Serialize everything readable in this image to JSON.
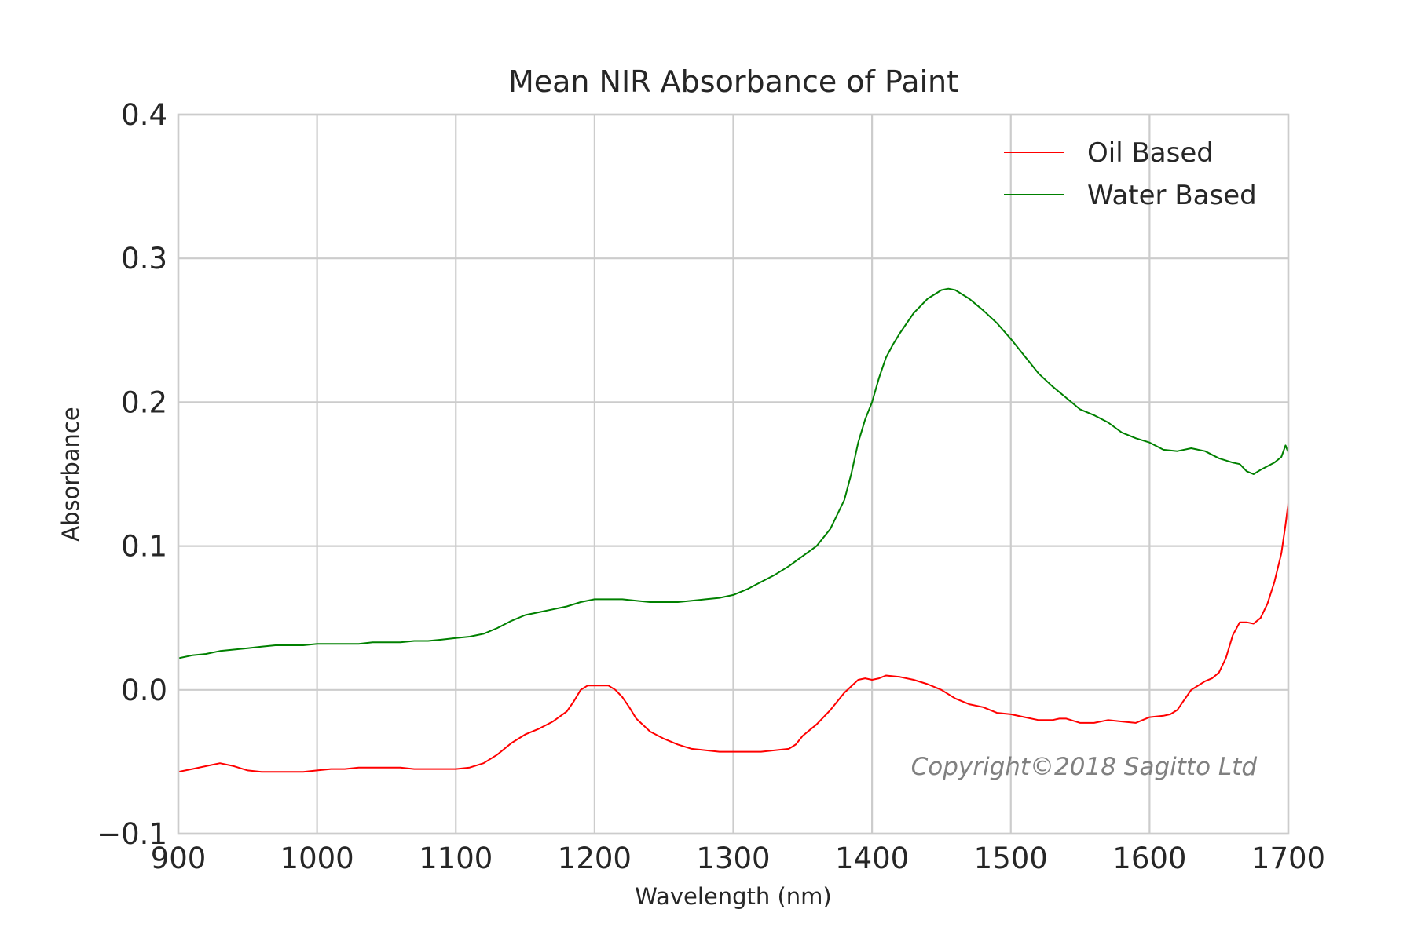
{
  "chart_data": {
    "type": "line",
    "title": "Mean NIR Absorbance of Paint",
    "xlabel": "Wavelength (nm)",
    "ylabel": "Absorbance",
    "xlim": [
      900,
      1700
    ],
    "ylim": [
      -0.1,
      0.4
    ],
    "xticks": [
      900,
      1000,
      1100,
      1200,
      1300,
      1400,
      1500,
      1600,
      1700
    ],
    "xtick_labels": [
      "900",
      "1000",
      "1100",
      "1200",
      "1300",
      "1400",
      "1500",
      "1600",
      "1700"
    ],
    "yticks": [
      -0.1,
      0.0,
      0.1,
      0.2,
      0.3,
      0.4
    ],
    "ytick_labels": [
      "−0.1",
      "0.0",
      "0.1",
      "0.2",
      "0.3",
      "0.4"
    ],
    "grid": true,
    "legend_position": "top-right",
    "watermark": "Copyright©2018 Sagitto Ltd",
    "series": [
      {
        "name": "Oil Based",
        "color": "#ff0000",
        "x": [
          900,
          910,
          920,
          930,
          940,
          950,
          960,
          970,
          980,
          990,
          1000,
          1010,
          1020,
          1030,
          1040,
          1050,
          1060,
          1070,
          1080,
          1090,
          1100,
          1110,
          1120,
          1130,
          1140,
          1150,
          1160,
          1170,
          1180,
          1185,
          1190,
          1195,
          1200,
          1205,
          1210,
          1215,
          1220,
          1225,
          1230,
          1240,
          1250,
          1260,
          1270,
          1280,
          1290,
          1300,
          1310,
          1320,
          1330,
          1340,
          1345,
          1350,
          1360,
          1370,
          1380,
          1390,
          1395,
          1400,
          1405,
          1410,
          1420,
          1430,
          1440,
          1450,
          1460,
          1470,
          1480,
          1490,
          1500,
          1510,
          1520,
          1530,
          1535,
          1540,
          1550,
          1560,
          1570,
          1580,
          1590,
          1600,
          1610,
          1615,
          1620,
          1625,
          1630,
          1640,
          1645,
          1650,
          1655,
          1660,
          1665,
          1670,
          1675,
          1680,
          1685,
          1690,
          1695,
          1698,
          1700
        ],
        "y": [
          -0.057,
          -0.055,
          -0.053,
          -0.051,
          -0.053,
          -0.056,
          -0.057,
          -0.057,
          -0.057,
          -0.057,
          -0.056,
          -0.055,
          -0.055,
          -0.054,
          -0.054,
          -0.054,
          -0.054,
          -0.055,
          -0.055,
          -0.055,
          -0.055,
          -0.054,
          -0.051,
          -0.045,
          -0.037,
          -0.031,
          -0.027,
          -0.022,
          -0.015,
          -0.008,
          0.0,
          0.003,
          0.003,
          0.003,
          0.003,
          0.0,
          -0.005,
          -0.012,
          -0.02,
          -0.029,
          -0.034,
          -0.038,
          -0.041,
          -0.042,
          -0.043,
          -0.043,
          -0.043,
          -0.043,
          -0.042,
          -0.041,
          -0.038,
          -0.032,
          -0.024,
          -0.014,
          -0.002,
          0.007,
          0.008,
          0.007,
          0.008,
          0.01,
          0.009,
          0.007,
          0.004,
          0.0,
          -0.006,
          -0.01,
          -0.012,
          -0.016,
          -0.017,
          -0.019,
          -0.021,
          -0.021,
          -0.02,
          -0.02,
          -0.023,
          -0.023,
          -0.021,
          -0.022,
          -0.023,
          -0.019,
          -0.018,
          -0.017,
          -0.014,
          -0.007,
          0.0,
          0.006,
          0.008,
          0.012,
          0.022,
          0.038,
          0.047,
          0.047,
          0.046,
          0.05,
          0.06,
          0.075,
          0.095,
          0.115,
          0.13
        ],
        "_note": "values read from plot"
      },
      {
        "name": "Water Based",
        "color": "#008000",
        "x": [
          900,
          910,
          920,
          930,
          940,
          950,
          960,
          970,
          980,
          990,
          1000,
          1010,
          1020,
          1030,
          1040,
          1050,
          1060,
          1070,
          1080,
          1090,
          1100,
          1110,
          1120,
          1130,
          1140,
          1150,
          1160,
          1170,
          1180,
          1190,
          1200,
          1210,
          1220,
          1230,
          1240,
          1250,
          1260,
          1270,
          1280,
          1290,
          1300,
          1310,
          1320,
          1330,
          1340,
          1350,
          1360,
          1370,
          1380,
          1385,
          1390,
          1395,
          1400,
          1405,
          1410,
          1415,
          1420,
          1430,
          1440,
          1450,
          1455,
          1460,
          1470,
          1480,
          1490,
          1500,
          1510,
          1520,
          1530,
          1540,
          1550,
          1560,
          1570,
          1580,
          1590,
          1600,
          1610,
          1620,
          1630,
          1640,
          1650,
          1660,
          1665,
          1670,
          1675,
          1680,
          1690,
          1695,
          1698,
          1700
        ],
        "y": [
          0.022,
          0.024,
          0.025,
          0.027,
          0.028,
          0.029,
          0.03,
          0.031,
          0.031,
          0.031,
          0.032,
          0.032,
          0.032,
          0.032,
          0.033,
          0.033,
          0.033,
          0.034,
          0.034,
          0.035,
          0.036,
          0.037,
          0.039,
          0.043,
          0.048,
          0.052,
          0.054,
          0.056,
          0.058,
          0.061,
          0.063,
          0.063,
          0.063,
          0.062,
          0.061,
          0.061,
          0.061,
          0.062,
          0.063,
          0.064,
          0.066,
          0.07,
          0.075,
          0.08,
          0.086,
          0.093,
          0.1,
          0.112,
          0.132,
          0.15,
          0.172,
          0.188,
          0.2,
          0.217,
          0.231,
          0.24,
          0.248,
          0.262,
          0.272,
          0.278,
          0.279,
          0.278,
          0.272,
          0.264,
          0.255,
          0.244,
          0.232,
          0.22,
          0.211,
          0.203,
          0.195,
          0.191,
          0.186,
          0.179,
          0.175,
          0.172,
          0.167,
          0.166,
          0.168,
          0.166,
          0.161,
          0.158,
          0.157,
          0.152,
          0.15,
          0.153,
          0.158,
          0.162,
          0.17,
          0.165
        ]
      }
    ]
  }
}
